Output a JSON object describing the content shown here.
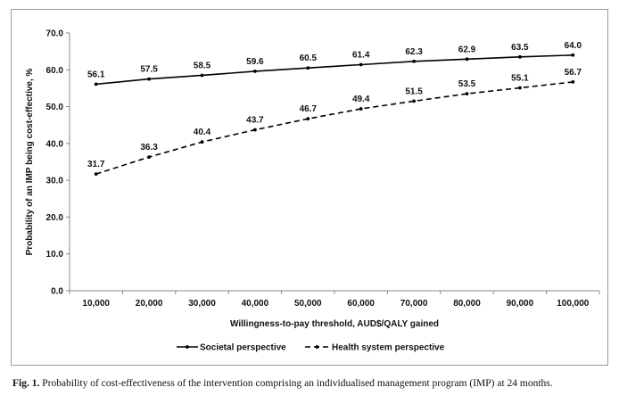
{
  "chart_data": {
    "type": "line",
    "xlabel": "Willingness-to-pay threshold, AUD$/QALY gained",
    "ylabel": "Probability of an IMP being cost-effective, %",
    "categories": [
      "10,000",
      "20,000",
      "30,000",
      "40,000",
      "50,000",
      "60,000",
      "70,000",
      "80,000",
      "90,000",
      "100,000"
    ],
    "yticks": [
      "0.0",
      "10.0",
      "20.0",
      "30.0",
      "40.0",
      "50.0",
      "60.0",
      "70.0"
    ],
    "ylim": [
      0,
      70
    ],
    "grid": false,
    "legend_position": "bottom-center",
    "series": [
      {
        "name": "Societal perspective",
        "style": "solid",
        "color": "#000000",
        "values": [
          56.1,
          57.5,
          58.5,
          59.6,
          60.5,
          61.4,
          62.3,
          62.9,
          63.5,
          64.0
        ],
        "labels": [
          "56.1",
          "57.5",
          "58.5",
          "59.6",
          "60.5",
          "61.4",
          "62.3",
          "62.9",
          "63.5",
          "64.0"
        ]
      },
      {
        "name": "Health system perspective",
        "style": "dashed",
        "color": "#000000",
        "values": [
          31.7,
          36.3,
          40.4,
          43.7,
          46.7,
          49.4,
          51.5,
          53.5,
          55.1,
          56.7
        ],
        "labels": [
          "31.7",
          "36.3",
          "40.4",
          "43.7",
          "46.7",
          "49.4",
          "51.5",
          "53.5",
          "55.1",
          "56.7"
        ]
      }
    ]
  },
  "caption": {
    "label": "Fig. 1.",
    "text": "Probability of cost-effectiveness of the intervention comprising an individualised management program (IMP) at 24 months."
  }
}
